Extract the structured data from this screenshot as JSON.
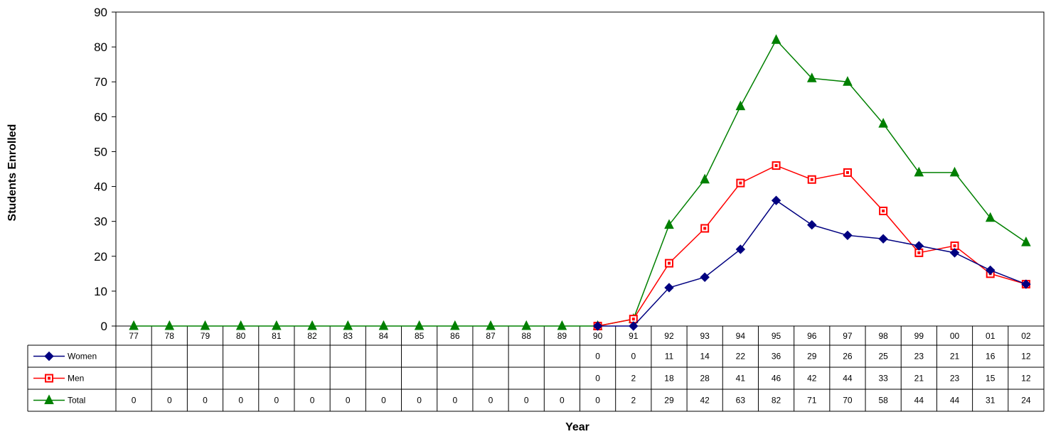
{
  "chart_data": {
    "type": "line",
    "xlabel": "Year",
    "ylabel": "Students Enrolled",
    "ylim": [
      0,
      90
    ],
    "yticks": [
      0,
      10,
      20,
      30,
      40,
      50,
      60,
      70,
      80,
      90
    ],
    "grid": false,
    "legend": "data-table-left",
    "categories": [
      "77",
      "78",
      "79",
      "80",
      "81",
      "82",
      "83",
      "84",
      "85",
      "86",
      "87",
      "88",
      "89",
      "90",
      "91",
      "92",
      "93",
      "94",
      "95",
      "96",
      "97",
      "98",
      "99",
      "00",
      "01",
      "02"
    ],
    "series": [
      {
        "name": "Women",
        "color": "#000080",
        "marker": "diamond",
        "values": [
          null,
          null,
          null,
          null,
          null,
          null,
          null,
          null,
          null,
          null,
          null,
          null,
          null,
          0,
          0,
          11,
          14,
          22,
          36,
          29,
          26,
          25,
          23,
          21,
          16,
          12
        ]
      },
      {
        "name": "Men",
        "color": "#ff0000",
        "marker": "square",
        "values": [
          null,
          null,
          null,
          null,
          null,
          null,
          null,
          null,
          null,
          null,
          null,
          null,
          null,
          0,
          2,
          18,
          28,
          41,
          46,
          42,
          44,
          33,
          21,
          23,
          15,
          12
        ]
      },
      {
        "name": "Total",
        "color": "#008000",
        "marker": "triangle",
        "values": [
          0,
          0,
          0,
          0,
          0,
          0,
          0,
          0,
          0,
          0,
          0,
          0,
          0,
          0,
          2,
          29,
          42,
          63,
          82,
          71,
          70,
          58,
          44,
          44,
          31,
          24
        ]
      }
    ]
  }
}
